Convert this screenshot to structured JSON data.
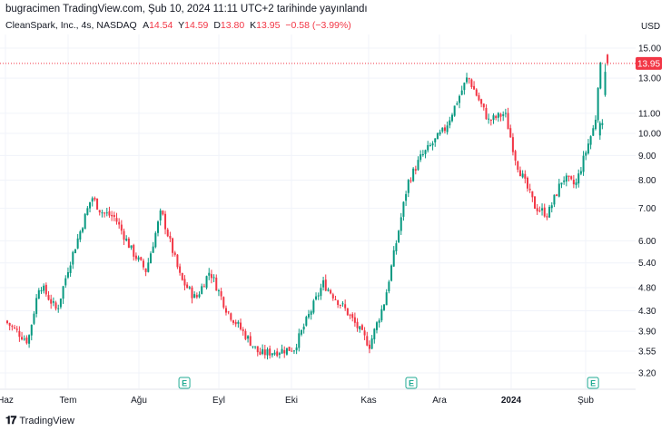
{
  "publication": "bugracimen TradingView.com, Şub 10, 2024 11:11 UTC+2 tarihinde yayınlandı",
  "legend": {
    "symbol": "CleanSpark, Inc., 4s, NASDAQ",
    "open_label": "A",
    "open": "14.54",
    "high_label": "Y",
    "high": "14.59",
    "low_label": "D",
    "low": "13.80",
    "close_label": "K",
    "close": "13.95",
    "change": "−0.58 (−3.99%)"
  },
  "currency": "USD",
  "brand": {
    "name": "TradingView",
    "icon": "tradingview-logo-icon"
  },
  "colors": {
    "up": "#089981",
    "down": "#f23645",
    "grid": "#f0f3fa",
    "text": "#131722",
    "event": "#22ab94"
  },
  "chart_data": {
    "type": "candlestick",
    "scale": "log",
    "ylim": [
      3.0,
      16.0
    ],
    "y_ticks": [
      "15.00",
      "13.00",
      "11.00",
      "10.00",
      "9.00",
      "8.00",
      "7.00",
      "6.00",
      "5.40",
      "4.80",
      "4.30",
      "3.90",
      "3.55",
      "3.20"
    ],
    "x_ticks": [
      "Haz",
      "Tem",
      "Ağu",
      "Eyl",
      "Eki",
      "Kas",
      "Ara",
      "2024",
      "Şub"
    ],
    "x_tick_bold": "2024",
    "last_price": "13.95",
    "price_path": [
      [
        0.0,
        4.1
      ],
      [
        2.0,
        3.72
      ],
      [
        3.0,
        4.9
      ],
      [
        4.5,
        4.3
      ],
      [
        5.5,
        5.3
      ],
      [
        7.5,
        7.4
      ],
      [
        8.3,
        6.9
      ],
      [
        9.5,
        6.7
      ],
      [
        11.0,
        5.7
      ],
      [
        12.2,
        5.2
      ],
      [
        13.5,
        6.9
      ],
      [
        15.2,
        5.0
      ],
      [
        16.5,
        4.55
      ],
      [
        17.7,
        5.2
      ],
      [
        19.2,
        4.3
      ],
      [
        22.0,
        3.5
      ],
      [
        25.0,
        3.6
      ],
      [
        27.5,
        4.9
      ],
      [
        29.5,
        4.3
      ],
      [
        31.5,
        3.65
      ],
      [
        32.8,
        4.5
      ],
      [
        33.9,
        6.1
      ],
      [
        34.8,
        7.9
      ],
      [
        35.9,
        8.9
      ],
      [
        38.0,
        10.2
      ],
      [
        40.0,
        13.1
      ],
      [
        41.8,
        10.6
      ],
      [
        43.2,
        11.0
      ],
      [
        44.2,
        8.7
      ],
      [
        45.8,
        7.05
      ],
      [
        46.9,
        6.8
      ],
      [
        48.2,
        8.1
      ],
      [
        49.3,
        7.8
      ],
      [
        50.5,
        9.7
      ],
      [
        51.0,
        10.5
      ],
      [
        51.2,
        12.5
      ],
      [
        51.6,
        14.5
      ],
      [
        52.0,
        13.95
      ]
    ],
    "events": [
      {
        "label": "E",
        "x_position": 15.3
      },
      {
        "label": "E",
        "x_position": 34.9
      },
      {
        "label": "E",
        "x_position": 50.6
      }
    ]
  }
}
